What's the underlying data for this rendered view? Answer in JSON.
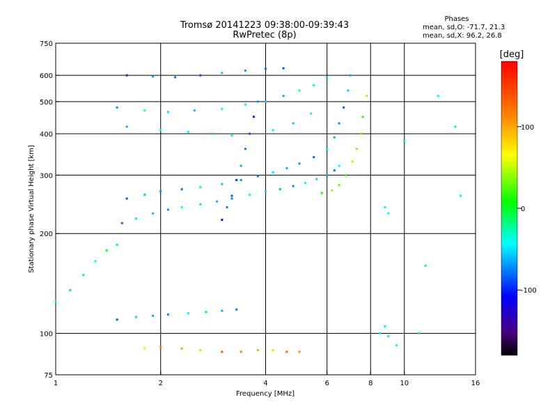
{
  "header": {
    "title": "Tromsø 20141223 09:38:00-09:39:43",
    "subtitle": "RwPretec (8p)",
    "stats_heading": "Phases",
    "stats_o": "mean, sd,O: -71.7, 21.3",
    "stats_x": "mean, sd,X:  96.2, 26.8"
  },
  "colorbar": {
    "unit_label": "[deg]",
    "tick_labels": [
      "100",
      "0",
      "-100"
    ],
    "tick_values": [
      100,
      0,
      -100
    ],
    "range": [
      -180,
      180
    ],
    "colormap": "rainbow"
  },
  "chart_data": {
    "type": "scatter",
    "xlabel": "Frequency [MHz]",
    "ylabel": "Stationary phase Virtual Height [km]",
    "xscale": "log",
    "yscale": "log",
    "xlim": [
      1,
      16
    ],
    "ylim": [
      75,
      750
    ],
    "x_ticks": [
      1,
      2,
      4,
      6,
      8,
      10,
      16
    ],
    "x_tick_labels": [
      "1",
      "2",
      "4",
      "6",
      "8",
      "10",
      "16"
    ],
    "x_gridlines": [
      2,
      4,
      6,
      8,
      10
    ],
    "y_ticks": [
      75,
      100,
      200,
      300,
      400,
      500,
      600,
      750
    ],
    "y_tick_labels": [
      "75",
      "100",
      "200",
      "300",
      "400",
      "500",
      "600",
      "750"
    ],
    "y_gridlines": [
      100,
      200,
      300,
      400,
      500,
      600
    ],
    "grid": true,
    "color_encodes": "phase (deg)",
    "series": [
      {
        "points": [
          [
            1.55,
            215
          ],
          [
            1.7,
            222
          ],
          [
            1.9,
            230
          ],
          [
            2.1,
            236
          ],
          [
            2.3,
            240
          ],
          [
            2.6,
            245
          ],
          [
            2.9,
            250
          ],
          [
            3.2,
            255
          ],
          [
            3.6,
            262
          ],
          [
            4.0,
            268
          ],
          [
            4.4,
            272
          ],
          [
            4.8,
            278
          ],
          [
            5.2,
            284
          ],
          [
            5.6,
            292
          ],
          [
            6.0,
            300
          ],
          [
            6.3,
            310
          ],
          [
            6.5,
            320
          ]
        ]
      },
      {
        "points": [
          [
            1.6,
            255
          ],
          [
            1.8,
            262
          ],
          [
            2.0,
            268
          ],
          [
            2.3,
            272
          ],
          [
            2.6,
            276
          ],
          [
            3.0,
            282
          ],
          [
            3.4,
            290
          ],
          [
            3.8,
            298
          ],
          [
            4.2,
            306
          ],
          [
            4.6,
            315
          ],
          [
            5.0,
            325
          ],
          [
            5.5,
            340
          ],
          [
            6.0,
            360
          ],
          [
            6.3,
            390
          ],
          [
            6.5,
            430
          ],
          [
            6.7,
            480
          ],
          [
            6.9,
            540
          ],
          [
            7.0,
            600
          ]
        ]
      },
      {
        "points": [
          [
            5.8,
            265
          ],
          [
            6.2,
            270
          ],
          [
            6.5,
            280
          ],
          [
            6.8,
            300
          ],
          [
            7.1,
            330
          ],
          [
            7.3,
            360
          ],
          [
            7.5,
            400
          ],
          [
            7.6,
            450
          ],
          [
            7.8,
            520
          ]
        ]
      },
      {
        "points": [
          [
            1.5,
            480
          ],
          [
            1.8,
            470
          ],
          [
            2.1,
            465
          ],
          [
            2.5,
            470
          ],
          [
            3.0,
            475
          ],
          [
            3.5,
            490
          ],
          [
            4.0,
            500
          ],
          [
            4.5,
            520
          ],
          [
            5.0,
            540
          ],
          [
            5.5,
            560
          ],
          [
            6.0,
            590
          ]
        ]
      },
      {
        "points": [
          [
            1.6,
            420
          ],
          [
            2.0,
            410
          ],
          [
            2.4,
            405
          ],
          [
            2.8,
            400
          ],
          [
            3.2,
            395
          ],
          [
            3.6,
            400
          ],
          [
            4.2,
            410
          ],
          [
            4.8,
            430
          ],
          [
            5.4,
            460
          ]
        ]
      },
      {
        "points": [
          [
            1.6,
            600
          ],
          [
            1.9,
            595
          ],
          [
            2.2,
            592
          ],
          [
            2.6,
            600
          ],
          [
            3.0,
            610
          ],
          [
            3.5,
            620
          ],
          [
            4.0,
            628
          ],
          [
            4.5,
            630
          ]
        ]
      },
      {
        "points": [
          [
            1.5,
            110
          ],
          [
            1.7,
            112
          ],
          [
            1.9,
            113
          ],
          [
            2.1,
            114
          ],
          [
            2.4,
            115
          ],
          [
            2.7,
            116
          ],
          [
            3.0,
            117
          ],
          [
            3.3,
            118
          ]
        ]
      },
      {
        "points": [
          [
            1.0,
            125
          ],
          [
            1.1,
            135
          ],
          [
            1.2,
            150
          ],
          [
            1.3,
            165
          ],
          [
            1.4,
            178
          ],
          [
            1.5,
            185
          ]
        ]
      },
      {
        "points": [
          [
            1.8,
            90
          ],
          [
            2.0,
            91
          ],
          [
            2.3,
            90
          ],
          [
            2.6,
            89
          ],
          [
            3.0,
            88
          ],
          [
            3.4,
            88
          ],
          [
            3.8,
            89
          ],
          [
            4.2,
            89
          ],
          [
            4.6,
            88
          ],
          [
            5.0,
            88
          ]
        ]
      },
      {
        "points": [
          [
            3.0,
            220
          ],
          [
            3.1,
            240
          ],
          [
            3.2,
            260
          ],
          [
            3.3,
            290
          ],
          [
            3.4,
            320
          ],
          [
            3.5,
            360
          ],
          [
            3.6,
            400
          ],
          [
            3.7,
            450
          ],
          [
            3.8,
            500
          ]
        ]
      },
      {
        "points": [
          [
            8.5,
            100
          ],
          [
            8.8,
            105
          ],
          [
            9.0,
            98
          ],
          [
            9.5,
            92
          ],
          [
            10.0,
            380
          ],
          [
            11.0,
            100
          ],
          [
            11.5,
            160
          ],
          [
            12.5,
            520
          ],
          [
            14.0,
            420
          ],
          [
            14.5,
            260
          ],
          [
            8.8,
            240
          ],
          [
            9.0,
            230
          ]
        ]
      }
    ]
  }
}
